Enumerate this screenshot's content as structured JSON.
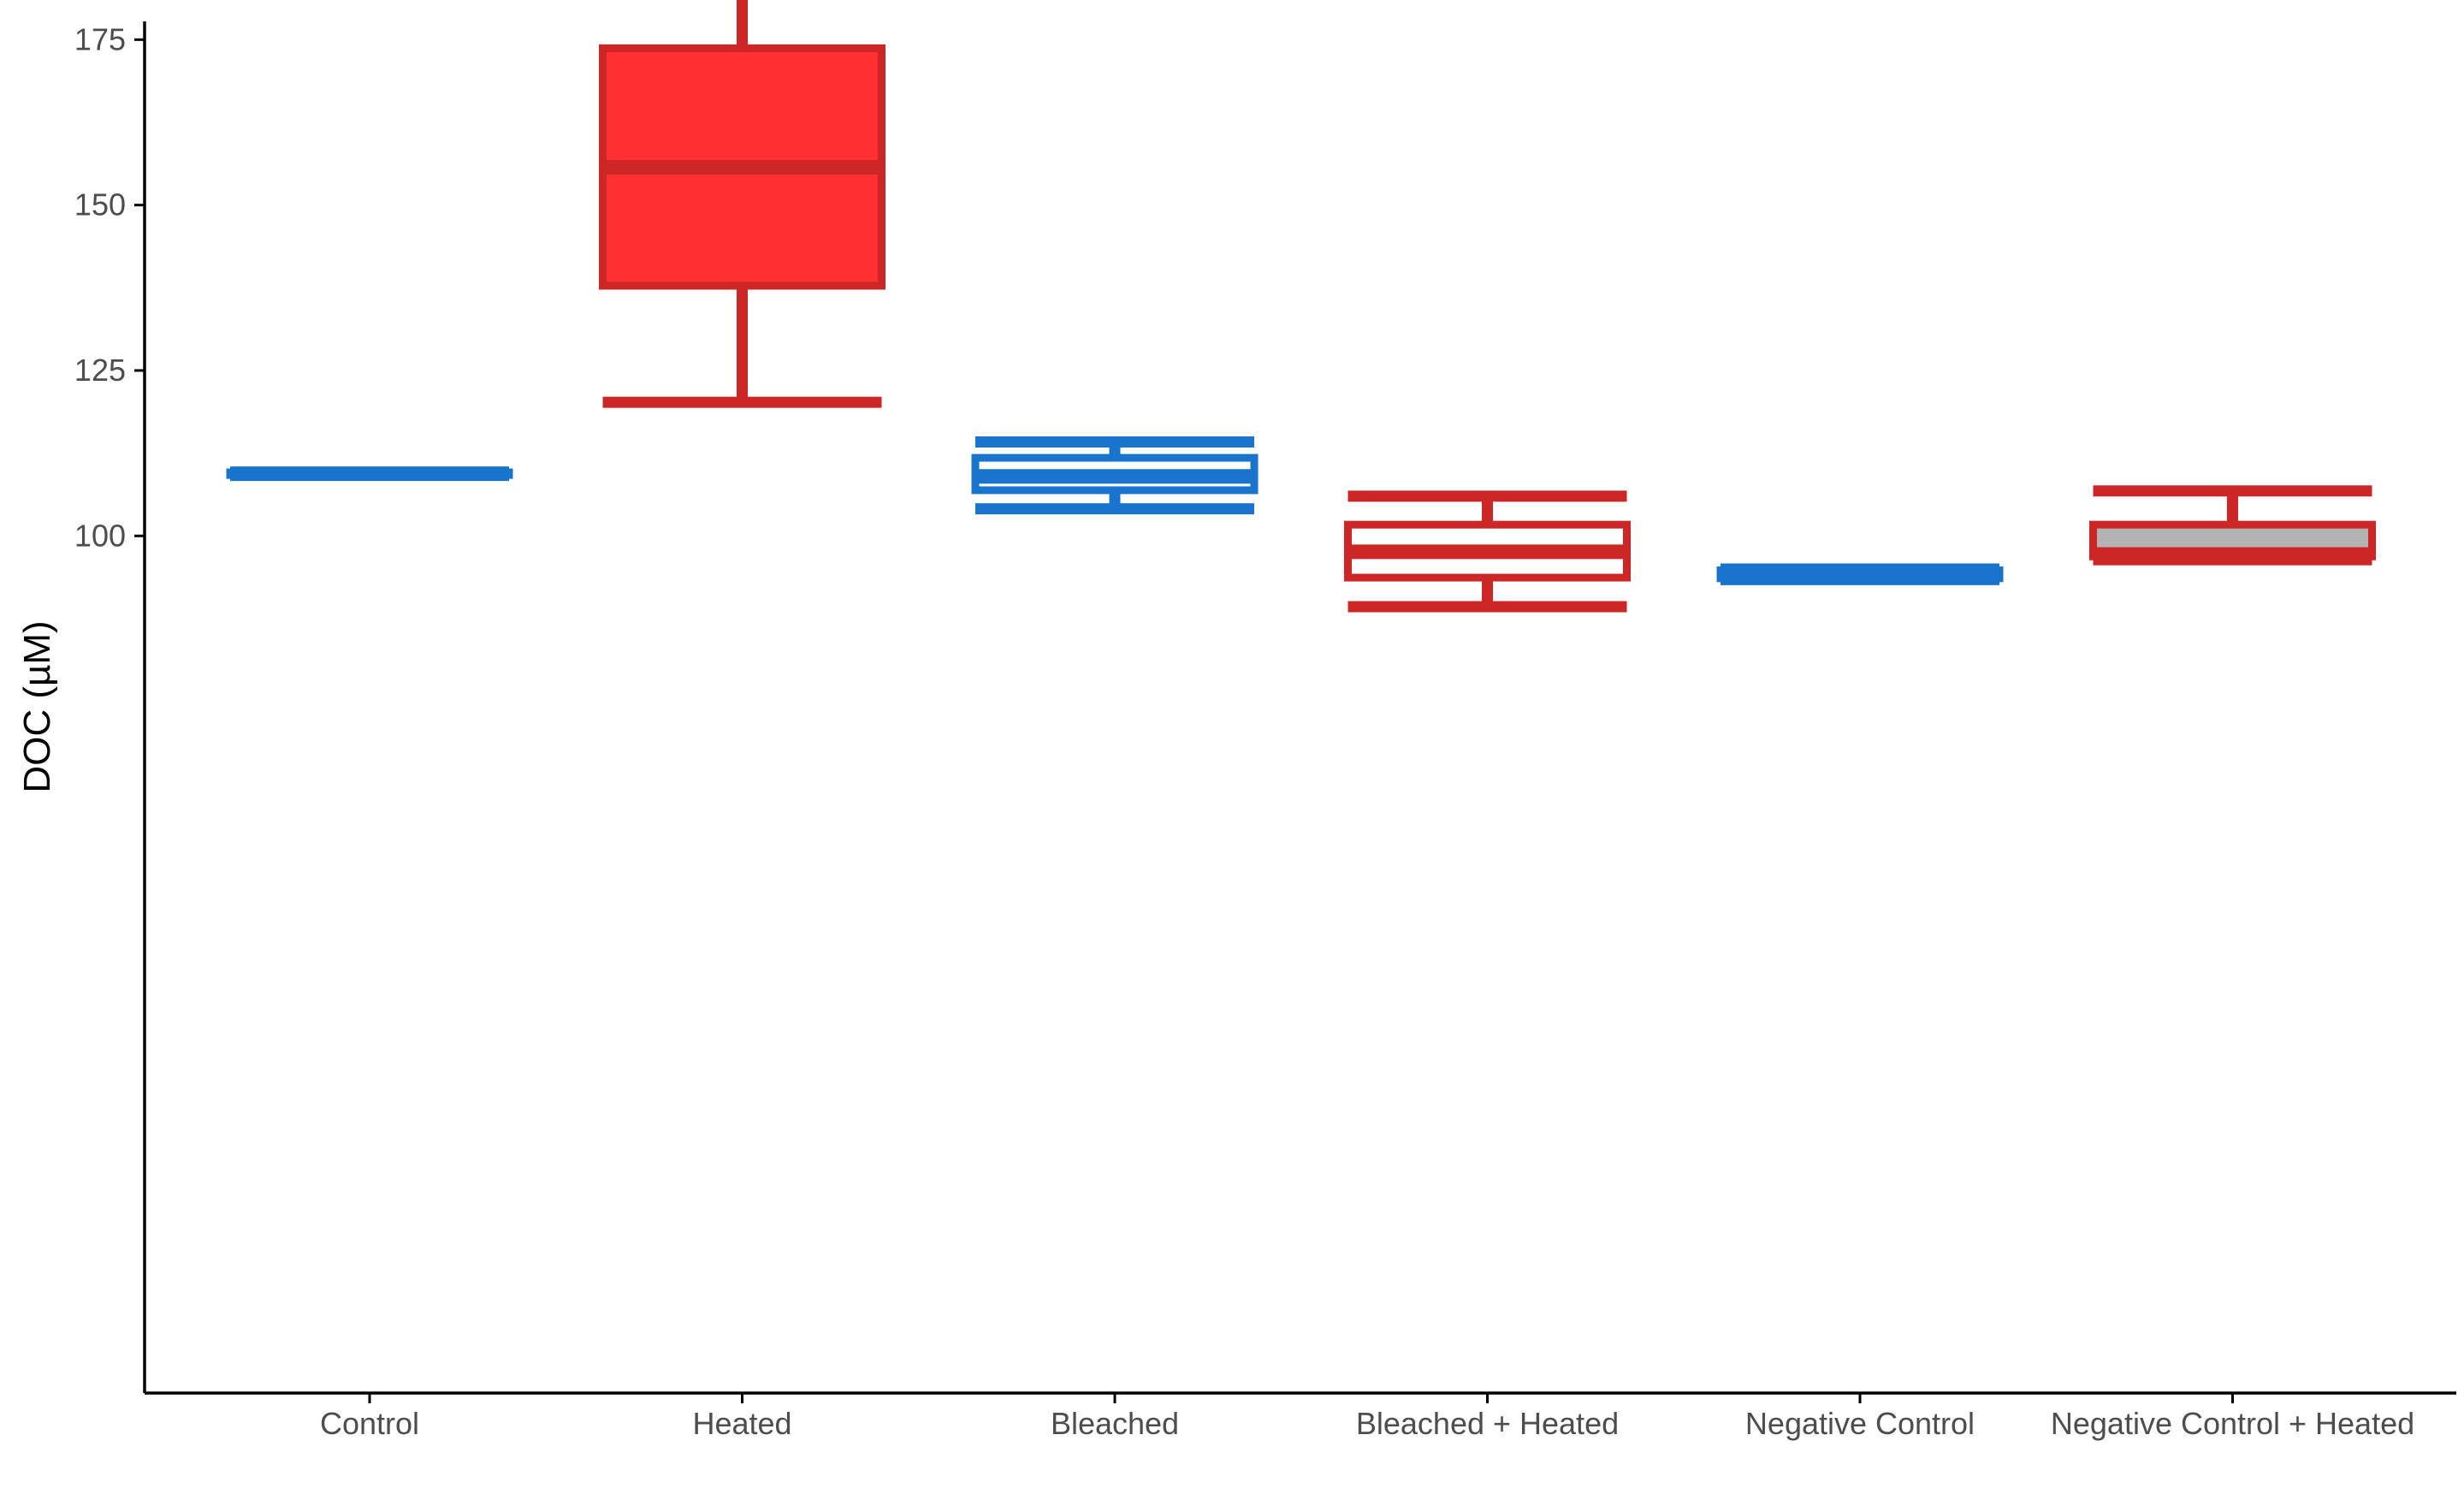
{
  "chart_data": {
    "type": "box",
    "title": "",
    "xlabel": "",
    "ylabel": "DOC (µM)",
    "ylim": [
      84,
      196
    ],
    "yticks": [
      100,
      125,
      150,
      175
    ],
    "grid": false,
    "legend": "none",
    "categories": [
      "Control",
      "Heated",
      "Bleached",
      "Bleached + Heated",
      "Negative Control",
      "Negative Control + Heated"
    ],
    "boxes": [
      {
        "category": "Control",
        "whisker_low": 109.2,
        "q1": 109.2,
        "median": 109.4,
        "q3": 109.6,
        "whisker_high": 109.6,
        "color": "#1874cd",
        "fill": "#1874cd"
      },
      {
        "category": "Heated",
        "whisker_low": 120.2,
        "q1": 137.8,
        "median": 155.7,
        "q3": 173.7,
        "whisker_high": 191.6,
        "color": "#cd2626",
        "fill": "#ff3030"
      },
      {
        "category": "Bleached",
        "whisker_low": 104.1,
        "q1": 106.9,
        "median": 109.0,
        "q3": 111.8,
        "whisker_high": 114.2,
        "color": "#1874cd",
        "fill": "#ffffff"
      },
      {
        "category": "Bleached + Heated",
        "whisker_low": 89.3,
        "q1": 93.7,
        "median": 97.6,
        "q3": 101.7,
        "whisker_high": 106.0,
        "color": "#cd2626",
        "fill": "#ffffff"
      },
      {
        "category": "Negative Control",
        "whisker_low": 93.4,
        "q1": 93.6,
        "median": 94.2,
        "q3": 94.8,
        "whisker_high": 95.0,
        "color": "#1874cd",
        "fill": "#1874cd"
      },
      {
        "category": "Negative Control + Heated",
        "whisker_low": 96.4,
        "q1": 96.9,
        "median": 97.2,
        "q3": 101.7,
        "whisker_high": 106.8,
        "color": "#cd2626",
        "fill": "#b3b3b3"
      }
    ]
  }
}
